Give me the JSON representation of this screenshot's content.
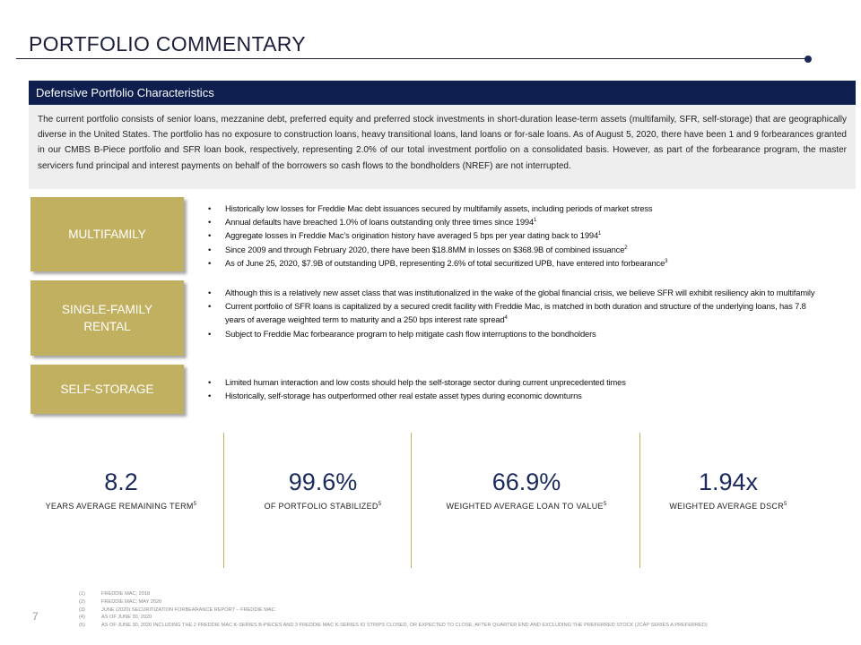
{
  "page": {
    "title": "PORTFOLIO COMMENTARY",
    "page_number": "7"
  },
  "defensive": {
    "header": "Defensive Portfolio Characteristics",
    "body": "The current portfolio consists of senior loans, mezzanine debt, preferred equity and preferred stock investments in short-duration lease-term assets (multifamily, SFR, self-storage) that are geographically diverse in the United States. The portfolio has no exposure to construction loans, heavy transitional loans, land loans or for-sale loans. As of August 5, 2020, there have been 1 and 9 forbearances granted in our CMBS B-Piece portfolio and SFR loan book, respectively, representing 2.0% of our total investment portfolio on a consolidated basis. However, as part of the forbearance program, the master servicers fund principal and interest payments on behalf of the borrowers so cash flows to the bondholders (NREF) are not interrupted."
  },
  "categories": [
    {
      "label": "MULTIFAMILY",
      "bullets": [
        {
          "text": "Historically low losses for Freddie Mac debt issuances secured by multifamily assets, including periods of market stress",
          "note": ""
        },
        {
          "text": "Annual defaults have breached 1.0% of loans outstanding only three times since 1994",
          "note": "1"
        },
        {
          "text": "Aggregate losses in Freddie Mac’s origination history have averaged 5 bps per year dating back to 1994",
          "note": "1"
        },
        {
          "text": "Since 2009 and through February 2020, there have been $18.8MM in losses on $368.9B of combined issuance",
          "note": "2"
        },
        {
          "text": "As of June 25, 2020, $7.9B of outstanding UPB, representing 2.6% of total securitized UPB, have entered into forbearance",
          "note": "3"
        }
      ]
    },
    {
      "label_line1": "SINGLE-FAMILY",
      "label_line2": "RENTAL",
      "bullets": [
        {
          "text": "Although this is a relatively new asset class that was institutionalized in the wake of the global financial crisis, we believe SFR will exhibit resiliency akin to multifamily",
          "note": ""
        },
        {
          "text": "Current portfolio of SFR loans is capitalized by a secured credit facility with Freddie Mac, is matched in both duration and structure of the underlying loans, has 7.8 years of average weighted term to maturity and a 250 bps interest rate spread",
          "note": "4"
        },
        {
          "text": "Subject to Freddie Mac forbearance program to help mitigate cash flow interruptions to the bondholders",
          "note": ""
        }
      ]
    },
    {
      "label": "SELF-STORAGE",
      "bullets": [
        {
          "text": "Limited human interaction and low costs should help the self-storage sector during current unprecedented times",
          "note": ""
        },
        {
          "text": "Historically, self-storage has outperformed other real estate asset types during economic downturns",
          "note": ""
        }
      ]
    }
  ],
  "stats": [
    {
      "value": "8.2",
      "label": "YEARS AVERAGE REMAINING TERM",
      "note": "5"
    },
    {
      "value": "99.6%",
      "label": "OF PORTFOLIO STABILIZED",
      "note": "5"
    },
    {
      "value": "66.9%",
      "label": "WEIGHTED AVERAGE LOAN TO VALUE",
      "note": "5"
    },
    {
      "value": "1.94x",
      "label": "WEIGHTED AVERAGE DSCR",
      "note": "5"
    }
  ],
  "footnotes": [
    {
      "num": "(1)",
      "text": "FREDDIE MAC; 2018"
    },
    {
      "num": "(2)",
      "text": "FREDDIE MAC; MAY 2020"
    },
    {
      "num": "(3)",
      "text": "JUNE (2020) SECURITIZATION FORBEARANCE REPORT – FREDDIE MAC"
    },
    {
      "num": "(4)",
      "text": "AS OF JUNE 30, 2020"
    },
    {
      "num": "(5)",
      "text": "AS OF JUNE 30, 2020 INCLUDING THE 2 FREDDIE MAC K-SERIES B-PIECES AND 3 FREDDIE MAC K-SERIES IO STRIPS CLOSED, OR EXPECTED TO CLOSE, AFTER QUARTER END AND EXCLUDING THE PREFERRED STOCK (JCAP SERIES A PREFERRED)"
    }
  ],
  "colors": {
    "navy": "#0d1e4f",
    "gold": "#c2b061",
    "panel_gray": "#eeeeee"
  }
}
